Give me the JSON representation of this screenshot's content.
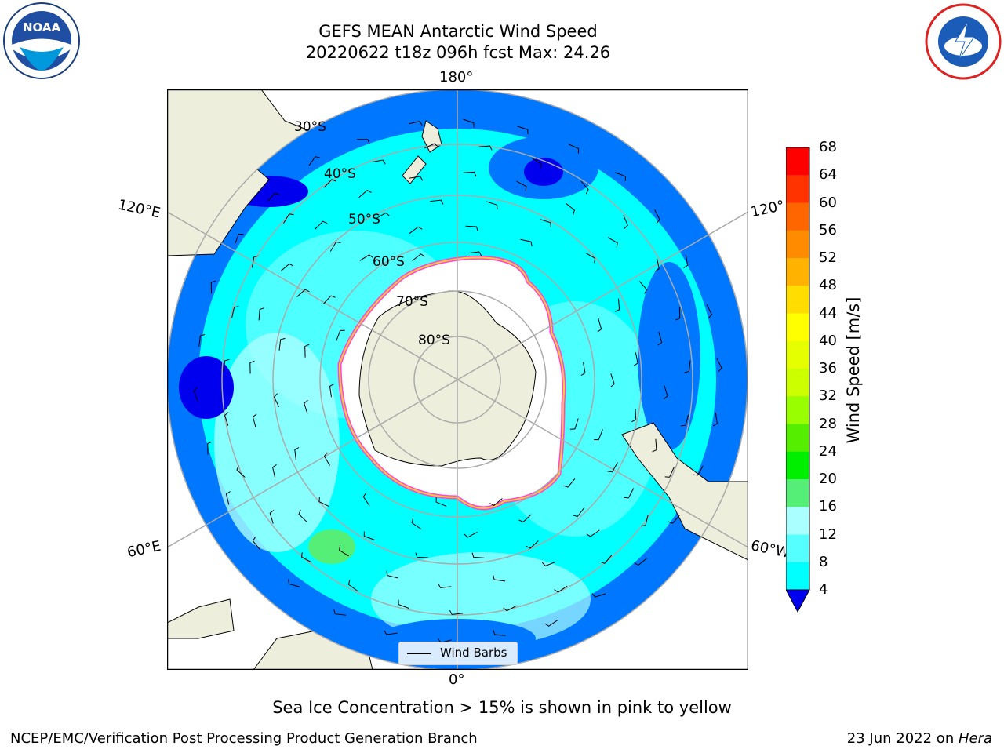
{
  "title": {
    "line1": "GEFS MEAN Antarctic Wind Speed",
    "line2": "20220622 t18z 096h fcst   Max: 24.26"
  },
  "map": {
    "projection": "south-polar-stereographic",
    "lon_labels": {
      "top": "180°",
      "bottom": "0°",
      "left_upper": "120°E",
      "left_lower": "60°E",
      "right_upper": "120°",
      "right_lower": "60°W"
    },
    "lat_labels": [
      "30°S",
      "40°S",
      "50°S",
      "60°S",
      "70°S",
      "80°S"
    ],
    "colors": {
      "ocean_strong_blue": "#0000ee",
      "ocean_blue": "#0077ff",
      "cyan": "#00ffff",
      "light_cyan": "#88ffff",
      "pale": "#aaffff",
      "green": "#55ee77",
      "land": "#eeeedd",
      "ice": "#ffffff",
      "ice_edge_pink": "#ff44dd",
      "ice_edge_yellow": "#ffcc33"
    }
  },
  "legend": {
    "label": "Wind Barbs"
  },
  "colorbar": {
    "title": "Wind Speed [m/s]",
    "ticks": [
      "68",
      "64",
      "60",
      "56",
      "52",
      "48",
      "44",
      "40",
      "36",
      "32",
      "28",
      "24",
      "20",
      "16",
      "12",
      "8",
      "4"
    ],
    "colors": [
      "#ff0000",
      "#ff3300",
      "#ff6600",
      "#ff8c00",
      "#ffb300",
      "#ffdd00",
      "#ffff00",
      "#e5ff00",
      "#ccff00",
      "#99ff00",
      "#55ee00",
      "#00ee00",
      "#55ee77",
      "#aaffff",
      "#55ffff",
      "#00ffff",
      "#0077ff"
    ],
    "extend_color": "#0000ee"
  },
  "note": "Sea Ice Concentration > 15% is shown in pink to yellow",
  "footer": {
    "left": "NCEP/EMC/Verification Post Processing Product Generation Branch",
    "right_date": "23 Jun 2022 on ",
    "right_host": "Hera"
  },
  "logos": {
    "left": "noaa-logo",
    "right": "nws-logo"
  }
}
